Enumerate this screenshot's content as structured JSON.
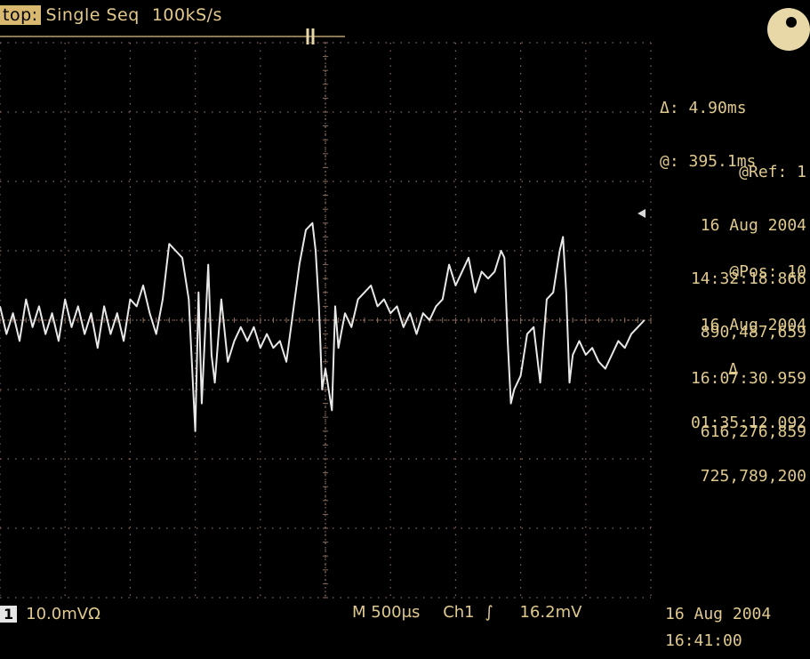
{
  "header": {
    "stop_tag": "top:",
    "acquisition": "Single Seq",
    "sample_rate": "100kS/s"
  },
  "cursor": {
    "delta": "Δ: 4.90ms",
    "at": "@: 395.1ms"
  },
  "ref": {
    "label": "@Ref: 1",
    "date": "16 Aug 2004",
    "time": "14:32:18.866",
    "count": "890,487,659"
  },
  "pos": {
    "label": "@Pos: 10",
    "date": "16 Aug 2004",
    "time": "16:07:30.959",
    "count": "616,276,859"
  },
  "diff": {
    "label": "Δ",
    "time": "01:35:12.092",
    "count": "725,789,200"
  },
  "footer": {
    "channel": "1",
    "scale": "10.0mVΩ",
    "timebase": "M 500μs",
    "trigger_source": "Ch1",
    "trigger_slope": "∫",
    "trigger_level": "16.2mV",
    "date": "16 Aug 2004",
    "time": "16:41:00"
  },
  "colors": {
    "background": "#000000",
    "trace": "#e8e8e8",
    "text": "#e0c98d",
    "grid": "#8a6a5a"
  },
  "chart_data": {
    "type": "line",
    "title": "",
    "xlabel": "",
    "ylabel": "",
    "grid": true,
    "divisions": {
      "x": 10,
      "y": 8
    },
    "xlim": [
      0,
      10
    ],
    "ylim": [
      -4,
      4
    ],
    "series": [
      {
        "values": [
          [
            0.0,
            0.2
          ],
          [
            0.1,
            -0.2
          ],
          [
            0.2,
            0.1
          ],
          [
            0.3,
            -0.3
          ],
          [
            0.4,
            0.3
          ],
          [
            0.5,
            -0.1
          ],
          [
            0.6,
            0.2
          ],
          [
            0.7,
            -0.2
          ],
          [
            0.8,
            0.1
          ],
          [
            0.9,
            -0.3
          ],
          [
            1.0,
            0.3
          ],
          [
            1.1,
            -0.1
          ],
          [
            1.2,
            0.2
          ],
          [
            1.3,
            -0.2
          ],
          [
            1.4,
            0.1
          ],
          [
            1.5,
            -0.4
          ],
          [
            1.6,
            0.2
          ],
          [
            1.7,
            -0.2
          ],
          [
            1.8,
            0.1
          ],
          [
            1.9,
            -0.3
          ],
          [
            2.0,
            0.3
          ],
          [
            2.1,
            0.2
          ],
          [
            2.2,
            0.5
          ],
          [
            2.3,
            0.1
          ],
          [
            2.4,
            -0.2
          ],
          [
            2.5,
            0.3
          ],
          [
            2.6,
            1.1
          ],
          [
            2.7,
            1.0
          ],
          [
            2.8,
            0.9
          ],
          [
            2.9,
            0.3
          ],
          [
            3.0,
            -1.6
          ],
          [
            3.05,
            0.4
          ],
          [
            3.1,
            -1.2
          ],
          [
            3.2,
            0.8
          ],
          [
            3.25,
            -0.5
          ],
          [
            3.3,
            -0.9
          ],
          [
            3.4,
            0.3
          ],
          [
            3.5,
            -0.6
          ],
          [
            3.6,
            -0.3
          ],
          [
            3.7,
            -0.1
          ],
          [
            3.8,
            -0.3
          ],
          [
            3.9,
            -0.1
          ],
          [
            4.0,
            -0.4
          ],
          [
            4.1,
            -0.2
          ],
          [
            4.2,
            -0.4
          ],
          [
            4.3,
            -0.3
          ],
          [
            4.4,
            -0.6
          ],
          [
            4.5,
            0.1
          ],
          [
            4.6,
            0.8
          ],
          [
            4.7,
            1.3
          ],
          [
            4.8,
            1.4
          ],
          [
            4.85,
            1.0
          ],
          [
            4.9,
            0.2
          ],
          [
            4.95,
            -1.0
          ],
          [
            5.0,
            -0.7
          ],
          [
            5.1,
            -1.3
          ],
          [
            5.15,
            0.2
          ],
          [
            5.2,
            -0.4
          ],
          [
            5.3,
            0.1
          ],
          [
            5.4,
            -0.1
          ],
          [
            5.5,
            0.3
          ],
          [
            5.6,
            0.4
          ],
          [
            5.7,
            0.5
          ],
          [
            5.8,
            0.2
          ],
          [
            5.9,
            0.3
          ],
          [
            6.0,
            0.1
          ],
          [
            6.1,
            0.2
          ],
          [
            6.2,
            -0.1
          ],
          [
            6.3,
            0.1
          ],
          [
            6.4,
            -0.2
          ],
          [
            6.5,
            0.1
          ],
          [
            6.6,
            0.0
          ],
          [
            6.7,
            0.2
          ],
          [
            6.8,
            0.3
          ],
          [
            6.9,
            0.8
          ],
          [
            7.0,
            0.5
          ],
          [
            7.1,
            0.7
          ],
          [
            7.2,
            0.9
          ],
          [
            7.3,
            0.4
          ],
          [
            7.4,
            0.7
          ],
          [
            7.5,
            0.6
          ],
          [
            7.6,
            0.7
          ],
          [
            7.7,
            1.0
          ],
          [
            7.75,
            0.9
          ],
          [
            7.8,
            -0.3
          ],
          [
            7.85,
            -1.2
          ],
          [
            7.9,
            -1.0
          ],
          [
            8.0,
            -0.8
          ],
          [
            8.1,
            -0.2
          ],
          [
            8.2,
            -0.1
          ],
          [
            8.3,
            -0.9
          ],
          [
            8.35,
            -0.3
          ],
          [
            8.4,
            0.3
          ],
          [
            8.5,
            0.4
          ],
          [
            8.6,
            1.0
          ],
          [
            8.65,
            1.2
          ],
          [
            8.7,
            0.4
          ],
          [
            8.75,
            -0.9
          ],
          [
            8.8,
            -0.5
          ],
          [
            8.9,
            -0.3
          ],
          [
            9.0,
            -0.5
          ],
          [
            9.1,
            -0.4
          ],
          [
            9.2,
            -0.6
          ],
          [
            9.3,
            -0.7
          ],
          [
            9.4,
            -0.5
          ],
          [
            9.5,
            -0.3
          ],
          [
            9.6,
            -0.4
          ],
          [
            9.7,
            -0.2
          ],
          [
            9.8,
            -0.1
          ],
          [
            9.9,
            0.0
          ]
        ]
      }
    ]
  }
}
